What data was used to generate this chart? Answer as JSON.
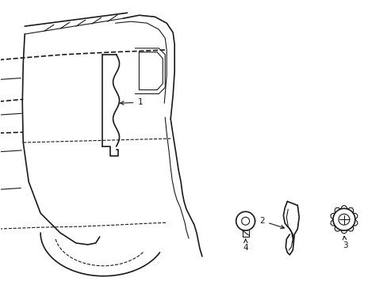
{
  "bg_color": "#ffffff",
  "line_color": "#1a1a1a",
  "label_color": "#333333",
  "lw_main": 1.2,
  "lw_thin": 0.8,
  "fontsize": 7.5
}
